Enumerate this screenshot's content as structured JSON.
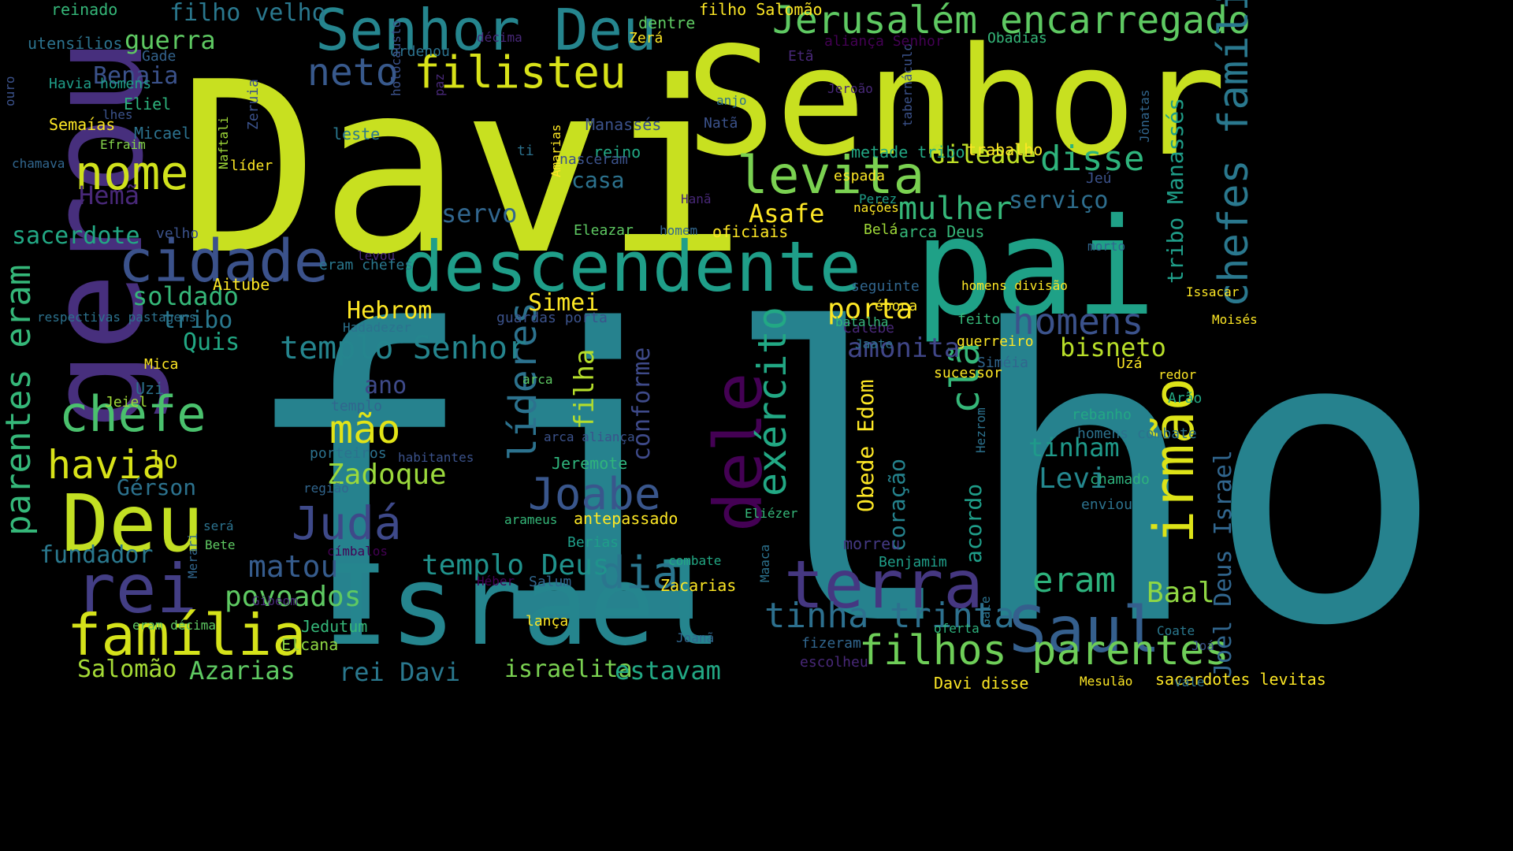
{
  "palette": {
    "background": "#000000",
    "dark_purple": "#440154",
    "purple": "#482878",
    "indigo": "#3e4989",
    "blue": "#31688e",
    "teal_blue": "#26828e",
    "teal": "#1f9e89",
    "green": "#35b779",
    "light_green": "#6ece58",
    "lime": "#b5de2b",
    "yellow": "#fde725"
  },
  "words": [
    {
      "text": "filho",
      "color": "#26828e"
    },
    {
      "text": "Davi",
      "color": "#c8e020"
    },
    {
      "text": "Senhor",
      "color": "#c8e020"
    },
    {
      "text": "pai",
      "color": "#1fa187"
    },
    {
      "text": "gerou",
      "color": "#472f7d"
    },
    {
      "text": "Israel",
      "color": "#25858e"
    },
    {
      "text": "descendente",
      "color": "#1f9e89"
    },
    {
      "text": "Senhor Deu",
      "color": "#25858e"
    },
    {
      "text": "Jerusalém encarregado",
      "color": "#5ec962"
    },
    {
      "text": "cidade",
      "color": "#3b528b"
    },
    {
      "text": "Deu",
      "color": "#c2df23"
    },
    {
      "text": "rei",
      "color": "#433e85"
    },
    {
      "text": "filisteu",
      "color": "#d8e219"
    },
    {
      "text": "levita",
      "color": "#7ad151"
    },
    {
      "text": "nome",
      "color": "#d0e11c"
    },
    {
      "text": "neto",
      "color": "#38598c"
    },
    {
      "text": "família",
      "color": "#d5e21a"
    },
    {
      "text": "terra",
      "color": "#453781"
    },
    {
      "text": "Saul",
      "color": "#355f8d"
    },
    {
      "text": "chefe",
      "color": "#4ac16d"
    },
    {
      "text": "dele",
      "color": "#440154"
    },
    {
      "text": "irmão",
      "color": "#dde318"
    },
    {
      "text": "exército",
      "color": "#22a884"
    },
    {
      "text": "filhos parentes",
      "color": "#6ece58"
    },
    {
      "text": "chefes família",
      "color": "#2a788e"
    },
    {
      "text": "parentes eram",
      "color": "#35b779"
    },
    {
      "text": "líderes",
      "color": "#2c728e"
    },
    {
      "text": "Joabe",
      "color": "#39568c"
    },
    {
      "text": "Judá",
      "color": "#3e4989"
    },
    {
      "text": "homens",
      "color": "#3b528b"
    },
    {
      "text": "eram",
      "color": "#2db27d"
    },
    {
      "text": "dia",
      "color": "#2a768e"
    },
    {
      "text": "tinha trinta",
      "color": "#2d708e"
    },
    {
      "text": "templo Senhor",
      "color": "#25858e"
    },
    {
      "text": "disse",
      "color": "#2eb37c"
    },
    {
      "text": "havia",
      "color": "#d8e219"
    },
    {
      "text": "mão",
      "color": "#e2e418"
    },
    {
      "text": "clã",
      "color": "#35b779"
    },
    {
      "text": "Gileade",
      "color": "#bddf26"
    },
    {
      "text": "mulher",
      "color": "#35b779"
    },
    {
      "text": "matou",
      "color": "#365c8d"
    },
    {
      "text": "Zadoque",
      "color": "#9bd93c"
    },
    {
      "text": "Hebrom",
      "color": "#fde725"
    },
    {
      "text": "Simei",
      "color": "#fde725"
    },
    {
      "text": "templo Deus",
      "color": "#20928c"
    },
    {
      "text": "filha",
      "color": "#b5de2b"
    },
    {
      "text": "conforme",
      "color": "#3e4a89"
    },
    {
      "text": "povoados",
      "color": "#5ec962"
    },
    {
      "text": "Baal",
      "color": "#8fd744"
    },
    {
      "text": "bisneto",
      "color": "#b8de29"
    },
    {
      "text": "tinham",
      "color": "#1f9a8a"
    },
    {
      "text": "Levi",
      "color": "#24878e"
    },
    {
      "text": "amonita",
      "color": "#404688"
    },
    {
      "text": "porta",
      "color": "#fde725"
    },
    {
      "text": "Asafe",
      "color": "#fde725"
    },
    {
      "text": "serviço",
      "color": "#2e6e8e"
    },
    {
      "text": "servo",
      "color": "#31668e"
    },
    {
      "text": "casa",
      "color": "#2c728e"
    },
    {
      "text": "Hemã",
      "color": "#482878"
    },
    {
      "text": "Benaia",
      "color": "#3b528b"
    },
    {
      "text": "guerra",
      "color": "#5ec962"
    },
    {
      "text": "filho velho",
      "color": "#2a788e"
    },
    {
      "text": "sacerdote",
      "color": "#22a884"
    },
    {
      "text": "soldado",
      "color": "#35b779"
    },
    {
      "text": "tribo",
      "color": "#2a788e"
    },
    {
      "text": "Quis",
      "color": "#22a884"
    },
    {
      "text": "ano",
      "color": "#3e4a89"
    },
    {
      "text": "lo",
      "color": "#d8e219"
    },
    {
      "text": "Gérson",
      "color": "#2c728e"
    },
    {
      "text": "fundador",
      "color": "#2a788e"
    },
    {
      "text": "Salomão",
      "color": "#a5db36"
    },
    {
      "text": "Azarias",
      "color": "#5ec962"
    },
    {
      "text": "rei Davi",
      "color": "#2a788e"
    },
    {
      "text": "israelita",
      "color": "#7ad151"
    },
    {
      "text": "estavam",
      "color": "#22a884"
    },
    {
      "text": "Joel Deus Israel",
      "color": "#31668e"
    },
    {
      "text": "tribo Manassés",
      "color": "#1f9e89"
    },
    {
      "text": "Obede Edom",
      "color": "#fde725"
    },
    {
      "text": "coração",
      "color": "#25838e"
    },
    {
      "text": "acordo",
      "color": "#1f9e89"
    },
    {
      "text": "morreu",
      "color": "#443983"
    },
    {
      "text": "Benjamim",
      "color": "#1f9e89"
    },
    {
      "text": "Jeremote",
      "color": "#2fb47c"
    },
    {
      "text": "antepassado",
      "color": "#fde725"
    },
    {
      "text": "Zacarias",
      "color": "#fde725"
    },
    {
      "text": "Davi disse",
      "color": "#fde725"
    },
    {
      "text": "sacerdotes levitas",
      "color": "#fde725"
    },
    {
      "text": "Jedutum",
      "color": "#35b779"
    },
    {
      "text": "Elcana",
      "color": "#8fd744"
    },
    {
      "text": "reinado",
      "color": "#35b779"
    },
    {
      "text": "utensílios",
      "color": "#2c728e"
    },
    {
      "text": "ouro",
      "color": "#3b528b"
    },
    {
      "text": "Havia homens",
      "color": "#1f9e89"
    },
    {
      "text": "Gade",
      "color": "#33638d"
    },
    {
      "text": "Eliel",
      "color": "#2db27d"
    },
    {
      "text": "Semaías",
      "color": "#fde725"
    },
    {
      "text": "lhes",
      "color": "#3b528b"
    },
    {
      "text": "Micael",
      "color": "#2c728e"
    },
    {
      "text": "Efraim",
      "color": "#84d44b"
    },
    {
      "text": "chamava",
      "color": "#31668e"
    },
    {
      "text": "Naftali",
      "color": "#a0da39"
    },
    {
      "text": "Zeruia",
      "color": "#3b528b"
    },
    {
      "text": "líder",
      "color": "#fde725"
    },
    {
      "text": "velho",
      "color": "#3b528b"
    },
    {
      "text": "eram chefes",
      "color": "#2a788e"
    },
    {
      "text": "levou",
      "color": "#482878"
    },
    {
      "text": "Aitube",
      "color": "#fde725"
    },
    {
      "text": "respectivas pastagens",
      "color": "#2c728e"
    },
    {
      "text": "Hadadezer",
      "color": "#2c728e"
    },
    {
      "text": "guardas porta",
      "color": "#3b528b"
    },
    {
      "text": "arca",
      "color": "#5ec962"
    },
    {
      "text": "templo",
      "color": "#31668e"
    },
    {
      "text": "arca aliança",
      "color": "#3b528b"
    },
    {
      "text": "porteiros",
      "color": "#2c728e"
    },
    {
      "text": "habitantes",
      "color": "#3b528b"
    },
    {
      "text": "região",
      "color": "#31668e"
    },
    {
      "text": "arameus",
      "color": "#35b779"
    },
    {
      "text": "címbalos",
      "color": "#440154"
    },
    {
      "text": "Héber",
      "color": "#440154"
    },
    {
      "text": "Gibeom",
      "color": "#482878"
    },
    {
      "text": "Merari",
      "color": "#31668e"
    },
    {
      "text": "será",
      "color": "#2c728e"
    },
    {
      "text": "Bete",
      "color": "#5ec962"
    },
    {
      "text": "Uzi",
      "color": "#2c728e"
    },
    {
      "text": "Jeiel",
      "color": "#a0da39"
    },
    {
      "text": "Mica",
      "color": "#fde725"
    },
    {
      "text": "eram décima",
      "color": "#5ec962"
    },
    {
      "text": "Berias",
      "color": "#1f9e89"
    },
    {
      "text": "Salum",
      "color": "#31668e"
    },
    {
      "text": "combate",
      "color": "#22a884"
    },
    {
      "text": "lança",
      "color": "#fde725"
    },
    {
      "text": "Maaca",
      "color": "#2c728e"
    },
    {
      "text": "Eliézer",
      "color": "#35b779"
    },
    {
      "text": "Joanã",
      "color": "#31668e"
    },
    {
      "text": "fizeram",
      "color": "#31668e"
    },
    {
      "text": "escolheu",
      "color": "#482878"
    },
    {
      "text": "oferta",
      "color": "#2db27d"
    },
    {
      "text": "Gate",
      "color": "#2c728e"
    },
    {
      "text": "Mesulão",
      "color": "#fde725"
    },
    {
      "text": "vale",
      "color": "#2c728e"
    },
    {
      "text": "Joá",
      "color": "#3b528b"
    },
    {
      "text": "Coate",
      "color": "#2a788e"
    },
    {
      "text": "chamado",
      "color": "#2db27d"
    },
    {
      "text": "enviou",
      "color": "#2c728e"
    },
    {
      "text": "Hezrom",
      "color": "#2c728e"
    },
    {
      "text": "homens combate",
      "color": "#2c728e"
    },
    {
      "text": "rebanho",
      "color": "#22a884"
    },
    {
      "text": "Arão",
      "color": "#22a884"
    },
    {
      "text": "redor",
      "color": "#fde725"
    },
    {
      "text": "Uzá",
      "color": "#fde725"
    },
    {
      "text": "Moisés",
      "color": "#fde725"
    },
    {
      "text": "Siméia",
      "color": "#31668e"
    },
    {
      "text": "sucessor",
      "color": "#fde725"
    },
    {
      "text": "guerreiro",
      "color": "#fde725"
    },
    {
      "text": "feito",
      "color": "#35b779"
    },
    {
      "text": "Calebe",
      "color": "#482878"
    },
    {
      "text": "Issacar",
      "color": "#fde725"
    },
    {
      "text": "morto",
      "color": "#31668e"
    },
    {
      "text": "Belá",
      "color": "#a0da39"
    },
    {
      "text": "nações",
      "color": "#fde725"
    },
    {
      "text": "Jeú",
      "color": "#3b528b"
    },
    {
      "text": "Jônatas",
      "color": "#31668e"
    },
    {
      "text": "tabernáculo",
      "color": "#3b528b"
    },
    {
      "text": "Jeroão",
      "color": "#482878"
    },
    {
      "text": "Obadias",
      "color": "#35b779"
    },
    {
      "text": "aliança Senhor",
      "color": "#440154"
    },
    {
      "text": "filho Salomão",
      "color": "#fde725"
    },
    {
      "text": "dentre",
      "color": "#5ec962"
    },
    {
      "text": "Zerá",
      "color": "#fde725"
    },
    {
      "text": "décima",
      "color": "#482878"
    },
    {
      "text": "ordenou",
      "color": "#2c728e"
    },
    {
      "text": "holocausto",
      "color": "#3b528b"
    },
    {
      "text": "paz",
      "color": "#482878"
    },
    {
      "text": "Etã",
      "color": "#482878"
    },
    {
      "text": "Natã",
      "color": "#3b528b"
    },
    {
      "text": "anjo",
      "color": "#2c728e"
    },
    {
      "text": "Manassés",
      "color": "#3b528b"
    },
    {
      "text": "Amarias",
      "color": "#fde725"
    },
    {
      "text": "leste",
      "color": "#2a788e"
    },
    {
      "text": "ti",
      "color": "#2c728e"
    },
    {
      "text": "reino",
      "color": "#22a884"
    },
    {
      "text": "nasceram",
      "color": "#3b528b"
    },
    {
      "text": "metade tribo",
      "color": "#22a884"
    },
    {
      "text": "trabalho",
      "color": "#fde725"
    },
    {
      "text": "espada",
      "color": "#fde725"
    },
    {
      "text": "Hanã",
      "color": "#482878"
    },
    {
      "text": "Perez",
      "color": "#1f9e89"
    },
    {
      "text": "Eleazar",
      "color": "#5ec962"
    },
    {
      "text": "homem",
      "color": "#31668e"
    },
    {
      "text": "oficiais",
      "color": "#fde725"
    },
    {
      "text": "arca Deus",
      "color": "#35b779"
    },
    {
      "text": "seguinte",
      "color": "#31668e"
    },
    {
      "text": "homens divisão",
      "color": "#fde725"
    },
    {
      "text": "época",
      "color": "#fde725"
    },
    {
      "text": "batalha",
      "color": "#35b779"
    },
    {
      "text": "Jaate",
      "color": "#2c728e"
    },
    {
      "text": "outro",
      "color": "#31668e"
    }
  ]
}
